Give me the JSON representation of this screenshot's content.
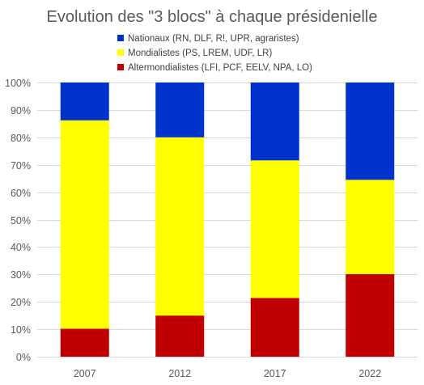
{
  "chart_data": {
    "type": "bar",
    "stacked": true,
    "title": "Evolution des \"3 blocs\" à chaque présidenielle",
    "xlabel": "",
    "ylabel": "",
    "ylim": [
      0,
      100
    ],
    "y_ticks": [
      "0%",
      "10%",
      "20%",
      "30%",
      "40%",
      "50%",
      "60%",
      "70%",
      "80%",
      "90%",
      "100%"
    ],
    "categories": [
      "2007",
      "2012",
      "2017",
      "2022"
    ],
    "legend_position": "top",
    "grid": true,
    "series": [
      {
        "name": "Altermondialistes (LFI, PCF, EELV, NPA, LO)",
        "color": "#c00000",
        "values": [
          10.2,
          15.0,
          21.4,
          30.1
        ]
      },
      {
        "name": "Mondialistes (PS, LREM, UDF, LR)",
        "color": "#ffff00",
        "values": [
          76.0,
          65.0,
          50.2,
          34.4
        ]
      },
      {
        "name": "Nationaux (RN, DLF, R!, UPR, agraristes)",
        "color": "#0033cc",
        "values": [
          13.8,
          20.0,
          28.4,
          35.5
        ]
      }
    ],
    "legend_order": [
      2,
      1,
      0
    ]
  }
}
